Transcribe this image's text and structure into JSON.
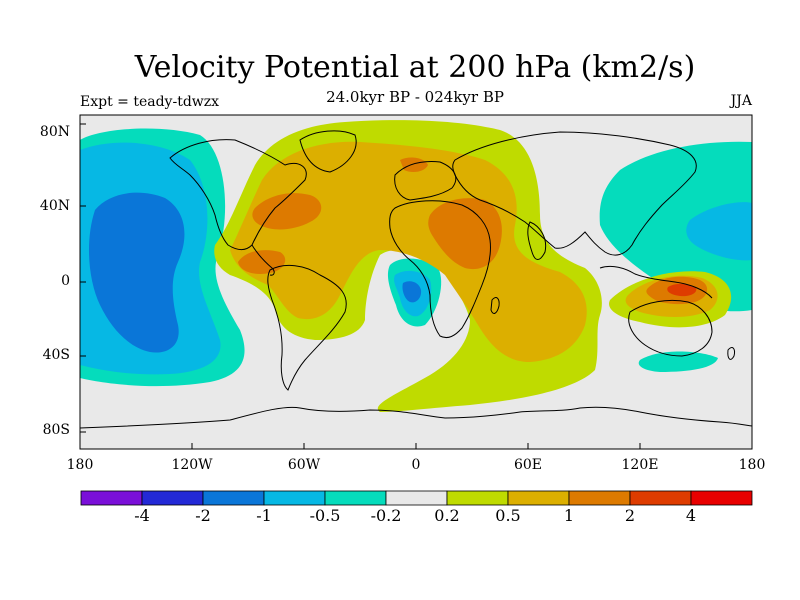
{
  "figure": {
    "title": "Velocity Potential at 200 hPa (km2/s)",
    "subtitle": "24.0kyr BP - 024kyr BP",
    "left_label": "Expt = teady-tdwzx",
    "right_label": "JJA"
  },
  "axes": {
    "lat_ticks": [
      "80N",
      "40N",
      "0",
      "40S",
      "80S"
    ],
    "lon_ticks": [
      "180",
      "120W",
      "60W",
      "0",
      "60E",
      "120E",
      "180"
    ]
  },
  "colorbar": {
    "levels": [
      "-4",
      "-2",
      "-1",
      "-0.5",
      "-0.2",
      "0.2",
      "0.5",
      "1",
      "2",
      "4"
    ],
    "colors": [
      "#7a0fd8",
      "#2329d6",
      "#0a76d8",
      "#06b8e4",
      "#05dcbc",
      "#e9e9e9",
      "#bfdb00",
      "#dcaf00",
      "#dd7a00",
      "#de3c00",
      "#e80000"
    ]
  },
  "colors": {
    "neutral": "#e9e9e9",
    "strong_negative": "#0a76d8",
    "negative": "#06b8e4",
    "weak_negative": "#05dcbc",
    "weak_positive": "#bfdb00",
    "positive": "#dcaf00",
    "strong_positive": "#dd7a00",
    "peak_positive": "#de3c00",
    "coastline": "#000000"
  }
}
